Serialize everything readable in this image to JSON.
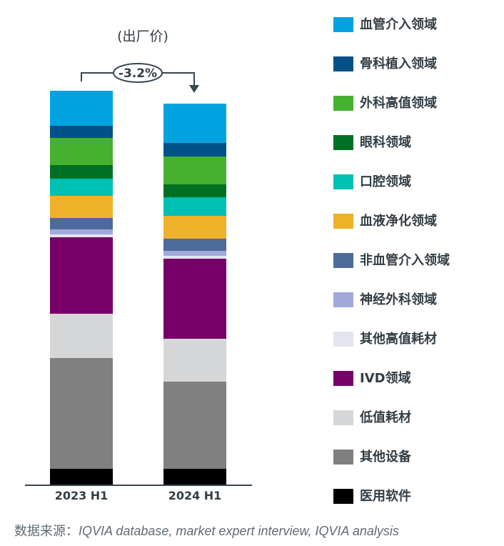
{
  "chart_data": {
    "type": "bar",
    "stacked": true,
    "title": "(出厂价)",
    "xlabel": "",
    "ylabel": "",
    "categories": [
      "2023 H1",
      "2024 H1"
    ],
    "units": "share of 2023 H1 total (%), estimated from bar heights",
    "series": [
      {
        "name": "医用软件",
        "color": "#000000",
        "values": [
          4.0,
          4.0
        ]
      },
      {
        "name": "其他设备",
        "color": "#808080",
        "values": [
          28.2,
          22.2
        ]
      },
      {
        "name": "低值耗材",
        "color": "#d4d6d8",
        "values": [
          11.3,
          10.9
        ]
      },
      {
        "name": "IVD领域",
        "color": "#760068",
        "values": [
          19.5,
          20.4
        ]
      },
      {
        "name": "其他高值耗材",
        "color": "#e2e5ef",
        "values": [
          0.7,
          0.7
        ]
      },
      {
        "name": "神经外科领域",
        "color": "#a2a9da",
        "values": [
          1.3,
          1.3
        ]
      },
      {
        "name": "非血管介入领域",
        "color": "#4d6a9a",
        "values": [
          2.9,
          3.1
        ]
      },
      {
        "name": "血液净化领域",
        "color": "#efb12a",
        "values": [
          5.5,
          5.8
        ]
      },
      {
        "name": "口腔领域",
        "color": "#00bfb3",
        "values": [
          4.4,
          4.7
        ]
      },
      {
        "name": "眼科领域",
        "color": "#007025",
        "values": [
          3.5,
          3.3
        ]
      },
      {
        "name": "外科高值领域",
        "color": "#45b12e",
        "values": [
          6.9,
          7.1
        ]
      },
      {
        "name": "骨科植入领域",
        "color": "#005288",
        "values": [
          3.1,
          3.5
        ]
      },
      {
        "name": "血管介入领域",
        "color": "#00a3e0",
        "values": [
          8.9,
          10.0
        ]
      }
    ],
    "totals": [
      100,
      96.9
    ],
    "annotations": [
      {
        "text": "-3.2%",
        "from": "2023 H1",
        "to": "2024 H1",
        "type": "change-arrow"
      }
    ],
    "legend_position": "right",
    "grid": false
  },
  "subtitle": "(出厂价)",
  "change_label": "-3.2%",
  "x_labels": [
    "2023 H1",
    "2024 H1"
  ],
  "legend": [
    {
      "label": "血管介入领域",
      "color": "#00a3e0"
    },
    {
      "label": "骨科植入领域",
      "color": "#005288"
    },
    {
      "label": "外科高值领域",
      "color": "#45b12e"
    },
    {
      "label": "眼科领域",
      "color": "#007025"
    },
    {
      "label": "口腔领域",
      "color": "#00bfb3"
    },
    {
      "label": "血液净化领域",
      "color": "#efb12a"
    },
    {
      "label": "非血管介入领域",
      "color": "#4d6a9a"
    },
    {
      "label": "神经外科领域",
      "color": "#a2a9da"
    },
    {
      "label": "其他高值耗材",
      "color": "#e2e5ef"
    },
    {
      "label": "IVD领域",
      "color": "#760068"
    },
    {
      "label": "低值耗材",
      "color": "#d4d6d8"
    },
    {
      "label": "其他设备",
      "color": "#808080"
    },
    {
      "label": "医用软件",
      "color": "#000000"
    }
  ],
  "source": {
    "prefix": "数据来源：",
    "text": "IQVIA database, market expert interview, IQVIA analysis"
  }
}
